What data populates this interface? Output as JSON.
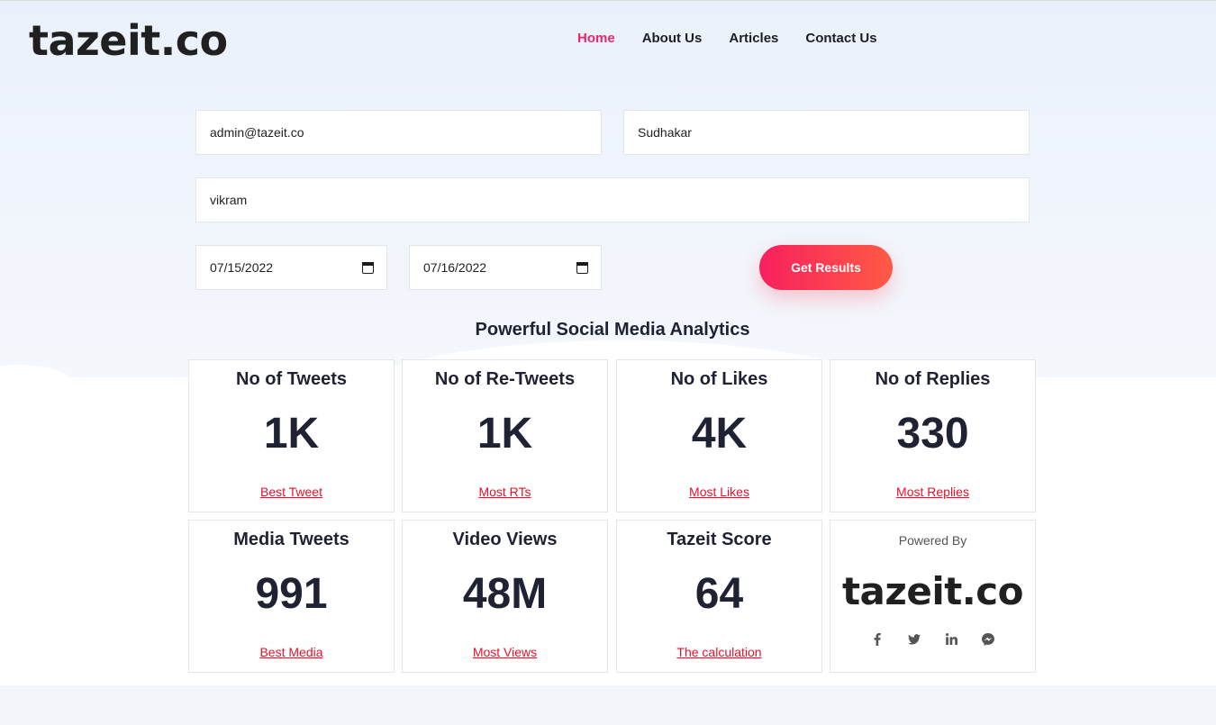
{
  "brand": {
    "logo": "tazeit.co"
  },
  "nav": [
    {
      "label": "Home",
      "active": true
    },
    {
      "label": "About Us",
      "active": false
    },
    {
      "label": "Articles",
      "active": false
    },
    {
      "label": "Contact Us",
      "active": false
    }
  ],
  "form": {
    "email": "admin@tazeit.co",
    "name": "Sudhakar",
    "keyword": "vikram",
    "start_date": "07/15/2022",
    "end_date": "07/16/2022",
    "submit_label": "Get Results"
  },
  "section_title": "Powerful Social Media Analytics",
  "cards": [
    {
      "title": "No of Tweets",
      "value": "1K",
      "link": "Best Tweet"
    },
    {
      "title": "No of Re-Tweets",
      "value": "1K",
      "link": "Most RTs"
    },
    {
      "title": "No of Likes",
      "value": "4K",
      "link": "Most Likes"
    },
    {
      "title": "No of Replies",
      "value": "330",
      "link": "Most Replies"
    },
    {
      "title": "Media Tweets",
      "value": "991",
      "link": "Best Media"
    },
    {
      "title": "Video Views",
      "value": "48M",
      "link": "Most Views"
    },
    {
      "title": "Tazeit Score",
      "value": "64",
      "link": "The calculation"
    }
  ],
  "powered": {
    "label": "Powered By",
    "logo": "tazeit.co",
    "socials": [
      "facebook-icon",
      "twitter-icon",
      "linkedin-icon",
      "messenger-icon"
    ]
  },
  "colors": {
    "accent": "#f0266b",
    "link": "#e8102c",
    "button_start": "#f8205e",
    "button_end": "#ff5a45"
  }
}
